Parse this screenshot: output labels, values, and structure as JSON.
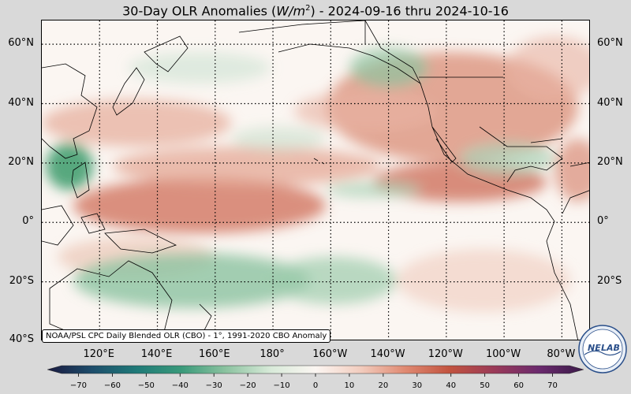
{
  "title": {
    "prefix": "30-Day OLR Anomalies (",
    "unit_main": "W/m",
    "unit_exp": "2",
    "suffix": ") - 2024-09-16 thru 2024-10-16"
  },
  "map": {
    "lat_labels": [
      "60°N",
      "40°N",
      "20°N",
      "0°",
      "20°S",
      "40°S"
    ],
    "lon_labels": [
      "120°E",
      "140°E",
      "160°E",
      "180°",
      "160°W",
      "140°W",
      "120°W",
      "100°W",
      "80°W"
    ],
    "lat_values": [
      60,
      40,
      20,
      0,
      -20,
      -40
    ],
    "lon_values": [
      120,
      140,
      160,
      180,
      200,
      220,
      240,
      260,
      280
    ],
    "extent": {
      "lon_min": 100,
      "lon_max": 290,
      "lat_min": -40,
      "lat_max": 68
    },
    "source_text": "NOAA/PSL CPC Daily Blended OLR (CBO) - 1°, 1991-2020 CBO Anomaly",
    "colors": {
      "positive": "#c2533f",
      "negative": "#2f8a5c",
      "neutral": "#fbf6f2"
    }
  },
  "colorbar": {
    "tick_labels": [
      "−70",
      "−60",
      "−50",
      "−40",
      "−30",
      "−20",
      "−10",
      "0",
      "10",
      "20",
      "30",
      "40",
      "50",
      "60",
      "70"
    ],
    "tick_values": [
      -70,
      -60,
      -50,
      -40,
      -30,
      -20,
      -10,
      0,
      10,
      20,
      30,
      40,
      50,
      60,
      70
    ],
    "min": -75,
    "max": 75,
    "colors": [
      "#1a1a40",
      "#1d4d6b",
      "#1f7a78",
      "#3a9a7a",
      "#8cc3a0",
      "#d8ead9",
      "#fbf6f2",
      "#f2cdbf",
      "#e08a72",
      "#c2533f",
      "#9a3a58",
      "#6b2a6e",
      "#3a1a48"
    ]
  },
  "logo": {
    "text_top": "NE",
    "text_bottom": "LAB",
    "icon": "noaa-psl-logo"
  }
}
